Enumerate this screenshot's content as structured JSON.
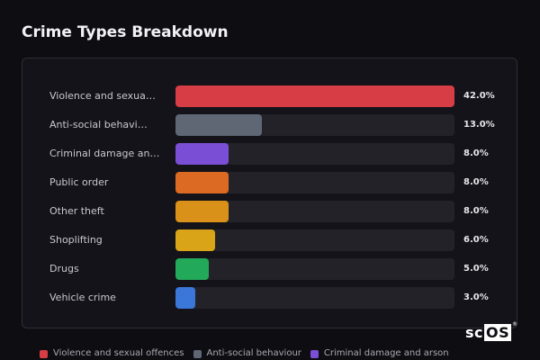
{
  "title": "Crime Types Breakdown",
  "chart_data": {
    "type": "bar",
    "orientation": "horizontal",
    "categories": [
      "Violence and sexua…",
      "Anti-social behavi…",
      "Criminal damage an…",
      "Public order",
      "Other theft",
      "Shoplifting",
      "Drugs",
      "Vehicle crime"
    ],
    "values": [
      42.0,
      13.0,
      8.0,
      8.0,
      8.0,
      6.0,
      5.0,
      3.0
    ],
    "value_labels": [
      "42.0%",
      "13.0%",
      "8.0%",
      "8.0%",
      "8.0%",
      "6.0%",
      "5.0%",
      "3.0%"
    ],
    "colors": [
      "#d63d45",
      "#5f6775",
      "#7a4fd6",
      "#dd6a22",
      "#d9911a",
      "#d9a418",
      "#22a95a",
      "#3a77d9"
    ],
    "xlim": [
      0,
      42
    ],
    "grid": false,
    "legend_placement": "bottom",
    "legend": [
      {
        "label": "Violence and sexual offences",
        "color": "#d63d45"
      },
      {
        "label": "Anti-social behaviour",
        "color": "#5f6775"
      },
      {
        "label": "Criminal damage and arson",
        "color": "#7a4fd6"
      }
    ]
  },
  "logo": {
    "prefix": "sc",
    "boxed": "OS",
    "mark": "®"
  },
  "colors": {
    "background": "#0e0d12",
    "panel": "#141319",
    "track": "#232229"
  }
}
